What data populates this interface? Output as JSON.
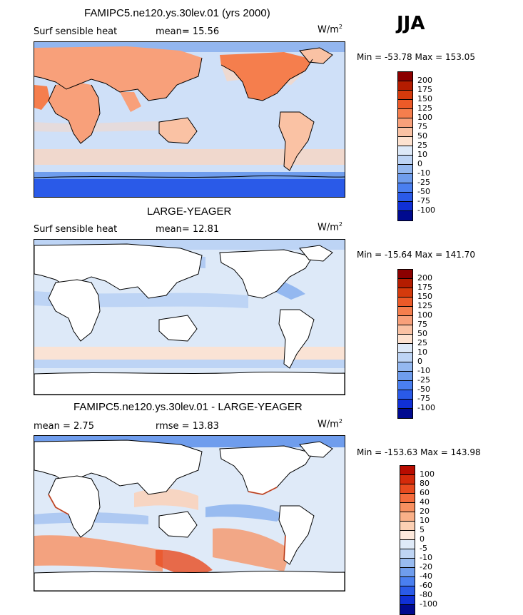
{
  "season": "JJA",
  "panels": [
    {
      "title": "FAMIPC5.ne120.ys.30lev.01 (yrs 2000)",
      "left_text": "Surf sensible heat",
      "stat1": "mean=  15.56",
      "stat2": "",
      "units": "W/m",
      "units_sup": "2",
      "minmax": "Min = -53.78  Max = 153.05",
      "scale": [
        "200",
        "175",
        "150",
        "125",
        "100",
        "75",
        "50",
        "25",
        "10",
        "0",
        "-10",
        "-25",
        "-50",
        "-75",
        "-100"
      ],
      "colors": [
        "#8b0000",
        "#b41c00",
        "#d43a0c",
        "#ec5a28",
        "#f57e4d",
        "#f8a07a",
        "#fac2a4",
        "#fde2d0",
        "#dde9f8",
        "#bdd4f5",
        "#94b8f0",
        "#6f9ded",
        "#4a7ff0",
        "#2a5ae8",
        "#1030d6",
        "#000a8f"
      ]
    },
    {
      "title": "LARGE-YEAGER",
      "left_text": "Surf sensible heat",
      "stat1": "mean=  12.81",
      "stat2": "",
      "units": "W/m",
      "units_sup": "2",
      "minmax": "Min = -15.64  Max = 141.70",
      "scale": [
        "200",
        "175",
        "150",
        "125",
        "100",
        "75",
        "50",
        "25",
        "10",
        "0",
        "-10",
        "-25",
        "-50",
        "-75",
        "-100"
      ],
      "colors": [
        "#8b0000",
        "#b41c00",
        "#d43a0c",
        "#ec5a28",
        "#f57e4d",
        "#f8a07a",
        "#fac2a4",
        "#fde2d0",
        "#dde9f8",
        "#bdd4f5",
        "#94b8f0",
        "#6f9ded",
        "#4a7ff0",
        "#2a5ae8",
        "#1030d6",
        "#000a8f"
      ]
    },
    {
      "title": "FAMIPC5.ne120.ys.30lev.01 - LARGE-YEAGER",
      "left_text": "mean =   2.75",
      "stat1": "rmse =  13.83",
      "stat2": "",
      "units": "W/m",
      "units_sup": "2",
      "minmax": "Min = -153.63  Max = 143.98",
      "scale": [
        "100",
        "80",
        "60",
        "40",
        "20",
        "10",
        "5",
        "0",
        "-5",
        "-10",
        "-20",
        "-40",
        "-60",
        "-80",
        "-100"
      ],
      "colors": [
        "#b80c00",
        "#d42a0a",
        "#e84a1e",
        "#f56c3c",
        "#f89060",
        "#fab088",
        "#fcd0b4",
        "#fde9dc",
        "#dfeaf8",
        "#bfd5f4",
        "#98bbf0",
        "#6f9ded",
        "#4a7ff0",
        "#2a5ae8",
        "#1030d6",
        "#000a8f"
      ]
    }
  ]
}
